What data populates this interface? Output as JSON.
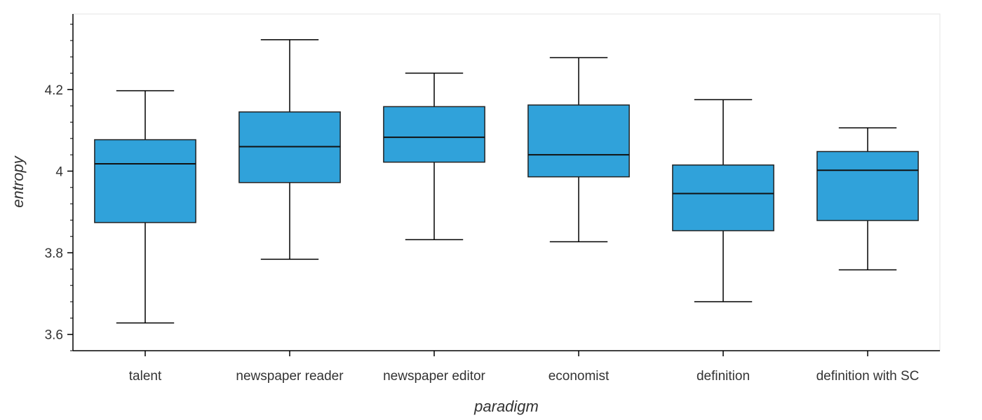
{
  "chart_data": {
    "type": "box",
    "title": "",
    "xlabel": "paradigm",
    "ylabel": "entropy",
    "ylim": [
      3.56,
      4.385
    ],
    "yticks": [
      {
        "value": 3.6,
        "label": "3.6"
      },
      {
        "value": 3.8,
        "label": "3.8"
      },
      {
        "value": 4.0,
        "label": "4"
      },
      {
        "value": 4.2,
        "label": "4.2"
      }
    ],
    "categories": [
      "talent",
      "newspaper reader",
      "newspaper editor",
      "economist",
      "definition",
      "definition with SC"
    ],
    "boxes": [
      {
        "category": "talent",
        "whisker_low": 3.628,
        "q1": 3.874,
        "median": 4.018,
        "q3": 4.077,
        "whisker_high": 4.197
      },
      {
        "category": "newspaper reader",
        "whisker_low": 3.784,
        "q1": 3.972,
        "median": 4.06,
        "q3": 4.145,
        "whisker_high": 4.322
      },
      {
        "category": "newspaper editor",
        "whisker_low": 3.832,
        "q1": 4.022,
        "median": 4.083,
        "q3": 4.158,
        "whisker_high": 4.24
      },
      {
        "category": "economist",
        "whisker_low": 3.827,
        "q1": 3.986,
        "median": 4.04,
        "q3": 4.162,
        "whisker_high": 4.278
      },
      {
        "category": "definition",
        "whisker_low": 3.68,
        "q1": 3.854,
        "median": 3.945,
        "q3": 4.015,
        "whisker_high": 4.175
      },
      {
        "category": "definition with SC",
        "whisker_low": 3.758,
        "q1": 3.879,
        "median": 4.002,
        "q3": 4.048,
        "whisker_high": 4.106
      }
    ],
    "colors": {
      "box_fill": "#30a2da",
      "box_stroke": "#222222",
      "median_line": "#111111",
      "whisker": "#000000",
      "axis": "#000000",
      "plot_border": "#e5e5e5"
    },
    "grid": false,
    "legend": "none"
  }
}
